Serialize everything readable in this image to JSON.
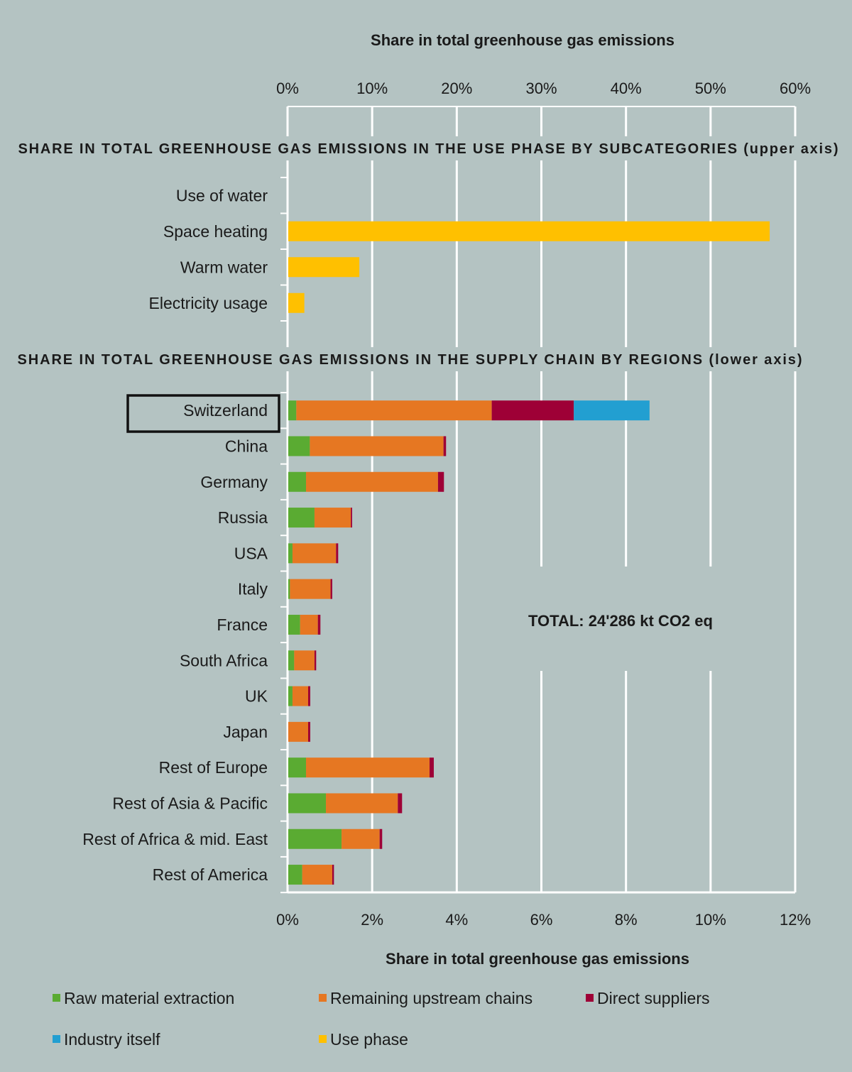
{
  "chart_data": [
    {
      "type": "bar",
      "orientation": "horizontal",
      "title": "SHARE IN TOTAL GREENHOUSE GAS EMISSIONS IN THE USE PHASE BY SUBCATEGORIES (upper axis)",
      "xlabel": "Share in total greenhouse gas emissions",
      "xlim": [
        0,
        60
      ],
      "xticks": [
        "0%",
        "10%",
        "20%",
        "30%",
        "40%",
        "50%",
        "60%"
      ],
      "grid": true,
      "categories": [
        "Use of water",
        "Space heating",
        "Warm water",
        "Electricity usage"
      ],
      "series": [
        {
          "name": "Use phase",
          "values": [
            0,
            56.9,
            8.4,
            1.9
          ]
        }
      ]
    },
    {
      "type": "bar",
      "orientation": "horizontal",
      "stacked": true,
      "title": "SHARE IN TOTAL GREENHOUSE GAS EMISSIONS IN THE SUPPLY CHAIN BY REGIONS (lower axis)",
      "xlabel": "Share in total greenhouse gas emissions",
      "xlim": [
        0,
        12
      ],
      "xticks": [
        "0%",
        "2%",
        "4%",
        "6%",
        "8%",
        "10%",
        "12%"
      ],
      "grid": true,
      "highlighted_category": "Switzerland",
      "annotation": "TOTAL: 24'286 kt CO2 eq",
      "categories": [
        "Switzerland",
        "China",
        "Germany",
        "Russia",
        "USA",
        "Italy",
        "France",
        "South Africa",
        "UK",
        "Japan",
        "Rest of Europe",
        "Rest of Asia & Pacific",
        "Rest of Africa & mid. East",
        "Rest of America"
      ],
      "series": [
        {
          "name": "Raw material extraction",
          "values": [
            0.19,
            0.51,
            0.42,
            0.62,
            0.1,
            0.04,
            0.28,
            0.14,
            0.1,
            0.0,
            0.42,
            0.89,
            1.26,
            0.33
          ]
        },
        {
          "name": "Remaining upstream chains",
          "values": [
            4.62,
            3.16,
            3.12,
            0.86,
            1.03,
            0.96,
            0.42,
            0.48,
            0.37,
            0.47,
            2.92,
            1.7,
            0.9,
            0.71
          ]
        },
        {
          "name": "Direct suppliers",
          "values": [
            1.94,
            0.06,
            0.14,
            0.03,
            0.05,
            0.04,
            0.06,
            0.04,
            0.05,
            0.05,
            0.1,
            0.1,
            0.06,
            0.04
          ]
        },
        {
          "name": "Industry itself",
          "values": [
            1.79,
            0,
            0,
            0,
            0,
            0,
            0,
            0,
            0,
            0,
            0,
            0,
            0,
            0
          ]
        }
      ]
    }
  ],
  "legend": {
    "placement": "bottom",
    "items": [
      {
        "label": "Raw material extraction",
        "color": "#5aab32"
      },
      {
        "label": "Remaining upstream chains",
        "color": "#e67722"
      },
      {
        "label": "Direct suppliers",
        "color": "#9e0036"
      },
      {
        "label": "Industry itself",
        "color": "#229fd1"
      },
      {
        "label": "Use phase",
        "color": "#ffc000"
      }
    ]
  },
  "colors": {
    "background": "#b4c3c2",
    "grid": "#ffffff"
  }
}
